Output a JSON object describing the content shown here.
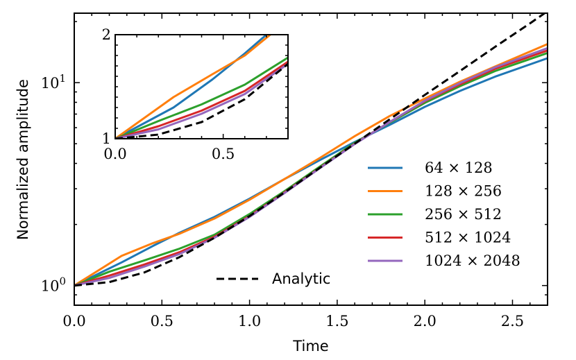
{
  "chart_data": {
    "type": "line",
    "xlabel": "Time",
    "ylabel": "Normalized amplitude",
    "xlim": [
      0,
      2.7
    ],
    "ylim": [
      0.8,
      22
    ],
    "yscale": "log",
    "x_ticks": [
      {
        "v": 0.0,
        "label": "0.0"
      },
      {
        "v": 0.5,
        "label": "0.5"
      },
      {
        "v": 1.0,
        "label": "1.0"
      },
      {
        "v": 1.5,
        "label": "1.5"
      },
      {
        "v": 2.0,
        "label": "2.0"
      },
      {
        "v": 2.5,
        "label": "2.5"
      }
    ],
    "y_ticks": [
      {
        "v": 1,
        "base": "10",
        "exp": "0"
      },
      {
        "v": 10,
        "base": "10",
        "exp": "1"
      }
    ],
    "series": [
      {
        "name": "64 × 128",
        "color": "#1f77b4",
        "x": [
          0,
          0.27,
          0.45,
          0.6,
          0.8,
          1.0,
          1.2,
          1.4,
          1.6,
          1.8,
          2.0,
          2.2,
          2.4,
          2.7
        ],
        "y": [
          1.0,
          1.3,
          1.57,
          1.82,
          2.18,
          2.68,
          3.35,
          4.15,
          5.1,
          6.2,
          7.6,
          9.1,
          10.7,
          13.2
        ]
      },
      {
        "name": "128 × 256",
        "color": "#ff7f0e",
        "x": [
          0,
          0.27,
          0.45,
          0.6,
          0.8,
          1.0,
          1.2,
          1.4,
          1.6,
          1.8,
          2.0,
          2.2,
          2.4,
          2.7
        ],
        "y": [
          1.0,
          1.4,
          1.62,
          1.8,
          2.14,
          2.65,
          3.35,
          4.25,
          5.45,
          6.85,
          8.35,
          10.1,
          12.0,
          15.5
        ]
      },
      {
        "name": "256 × 512",
        "color": "#2ca02c",
        "x": [
          0,
          0.2,
          0.4,
          0.6,
          0.8,
          1.0,
          1.2,
          1.4,
          1.6,
          1.8,
          2.0,
          2.2,
          2.4,
          2.7
        ],
        "y": [
          1.0,
          1.17,
          1.33,
          1.52,
          1.78,
          2.25,
          2.92,
          3.85,
          5.05,
          6.35,
          7.95,
          9.6,
          11.4,
          14.0
        ]
      },
      {
        "name": "512 × 1024",
        "color": "#d62728",
        "x": [
          0,
          0.2,
          0.4,
          0.6,
          0.8,
          1.0,
          1.2,
          1.4,
          1.6,
          1.8,
          2.0,
          2.2,
          2.4,
          2.7
        ],
        "y": [
          1.0,
          1.12,
          1.27,
          1.46,
          1.74,
          2.2,
          2.88,
          3.8,
          5.0,
          6.4,
          8.1,
          9.8,
          11.7,
          14.4
        ]
      },
      {
        "name": "1024 × 2048",
        "color": "#9467bd",
        "x": [
          0,
          0.2,
          0.4,
          0.6,
          0.8,
          1.0,
          1.2,
          1.4,
          1.6,
          1.8,
          2.0,
          2.2,
          2.4,
          2.7
        ],
        "y": [
          1.0,
          1.09,
          1.24,
          1.43,
          1.72,
          2.18,
          2.86,
          3.78,
          4.98,
          6.4,
          8.15,
          9.95,
          11.9,
          14.8
        ]
      },
      {
        "name": "Analytic",
        "color": "#000000",
        "dashed": true,
        "x": [
          0,
          0.2,
          0.4,
          0.6,
          0.8,
          1.0,
          1.2,
          1.4,
          1.6,
          1.8,
          2.0,
          2.2,
          2.4,
          2.6,
          2.7
        ],
        "y": [
          1.0,
          1.04,
          1.16,
          1.38,
          1.72,
          2.2,
          2.88,
          3.8,
          5.0,
          6.6,
          8.7,
          11.4,
          15.0,
          19.6,
          22.5
        ]
      }
    ],
    "legend": {
      "placement": "lower-right",
      "items": [
        "64 × 128",
        "128 × 256",
        "256 × 512",
        "512 × 1024",
        "1024 × 2048"
      ],
      "analytic_item": "Analytic",
      "analytic_placement": "lower-center"
    },
    "inset": {
      "xlim": [
        0,
        0.8
      ],
      "ylim": [
        1,
        2
      ],
      "x_ticks": [
        {
          "v": 0.0,
          "label": "0.0"
        },
        {
          "v": 0.5,
          "label": "0.5"
        }
      ],
      "y_ticks": [
        {
          "v": 1,
          "label": "1"
        },
        {
          "v": 2,
          "label": "2"
        }
      ]
    }
  }
}
